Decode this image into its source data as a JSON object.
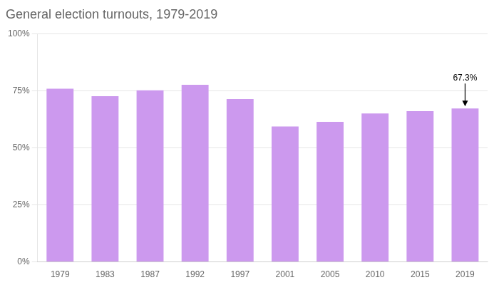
{
  "chart_data": {
    "type": "bar",
    "title": "General election turnouts, 1979-2019",
    "categories": [
      "1979",
      "1983",
      "1987",
      "1992",
      "1997",
      "2001",
      "2005",
      "2010",
      "2015",
      "2019"
    ],
    "values": [
      76.0,
      72.7,
      75.3,
      77.7,
      71.4,
      59.4,
      61.4,
      65.1,
      66.1,
      67.3
    ],
    "color": "#cc99ee",
    "ylim": [
      0,
      100
    ],
    "yticks": [
      {
        "value": 0,
        "label": "0%"
      },
      {
        "value": 25,
        "label": "25%"
      },
      {
        "value": 50,
        "label": "50%"
      },
      {
        "value": 75,
        "label": "75%"
      },
      {
        "value": 100,
        "label": "100%"
      }
    ],
    "grid": true,
    "annotations": [
      {
        "category": "2019",
        "value": 67.3,
        "text": "67.3%"
      }
    ]
  }
}
